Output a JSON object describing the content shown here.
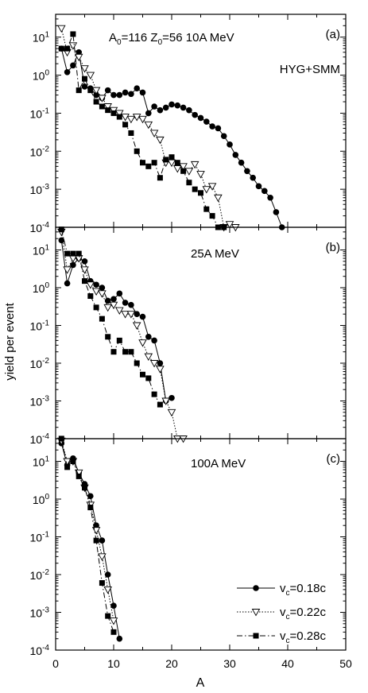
{
  "chart_data": [
    {
      "type": "line",
      "panel_label": "(a)",
      "title_parts": {
        "a0_sym": "A",
        "a0_sub": "0",
        "a0_val": "=116 ",
        "z0_sym": "Z",
        "z0_sub": "0",
        "z0_val": "=56  10A MeV"
      },
      "annotation": "HYG+SMM",
      "xlim": [
        0,
        50
      ],
      "ylim_exp": [
        -4,
        1.6
      ],
      "series": [
        {
          "name": "v_c=0.18c",
          "marker": "circle",
          "dash": "solid",
          "points": [
            [
              1,
              5
            ],
            [
              2,
              1.2
            ],
            [
              3,
              1.8
            ],
            [
              4,
              4
            ],
            [
              5,
              0.5
            ],
            [
              6,
              0.45
            ],
            [
              7,
              0.3
            ],
            [
              8,
              0.25
            ],
            [
              9,
              0.4
            ],
            [
              10,
              0.3
            ],
            [
              11,
              0.3
            ],
            [
              12,
              0.35
            ],
            [
              13,
              0.32
            ],
            [
              14,
              0.45
            ],
            [
              15,
              0.35
            ],
            [
              16,
              0.1
            ],
            [
              17,
              0.15
            ],
            [
              18,
              0.12
            ],
            [
              19,
              0.14
            ],
            [
              20,
              0.17
            ],
            [
              21,
              0.16
            ],
            [
              22,
              0.14
            ],
            [
              23,
              0.12
            ],
            [
              24,
              0.09
            ],
            [
              25,
              0.075
            ],
            [
              26,
              0.06
            ],
            [
              27,
              0.045
            ],
            [
              28,
              0.04
            ],
            [
              29,
              0.025
            ],
            [
              30,
              0.015
            ],
            [
              31,
              0.008
            ],
            [
              32,
              0.005
            ],
            [
              33,
              0.003
            ],
            [
              34,
              0.002
            ],
            [
              35,
              0.0012
            ],
            [
              36,
              0.0009
            ],
            [
              37,
              0.0006
            ],
            [
              38,
              0.00025
            ],
            [
              39,
              0.0001
            ]
          ]
        },
        {
          "name": "v_c=0.22c",
          "marker": "triangle",
          "dash": "dotted",
          "points": [
            [
              1,
              17
            ],
            [
              2,
              4
            ],
            [
              3,
              6
            ],
            [
              4,
              3
            ],
            [
              5,
              1.5
            ],
            [
              6,
              1
            ],
            [
              7,
              0.4
            ],
            [
              8,
              0.25
            ],
            [
              9,
              0.15
            ],
            [
              10,
              0.12
            ],
            [
              11,
              0.1
            ],
            [
              12,
              0.08
            ],
            [
              13,
              0.07
            ],
            [
              14,
              0.08
            ],
            [
              15,
              0.07
            ],
            [
              16,
              0.05
            ],
            [
              17,
              0.03
            ],
            [
              18,
              0.02
            ],
            [
              19,
              0.005
            ],
            [
              20,
              0.005
            ],
            [
              21,
              0.0035
            ],
            [
              22,
              0.004
            ],
            [
              23,
              0.003
            ],
            [
              24,
              0.0045
            ],
            [
              25,
              0.0025
            ],
            [
              26,
              0.001
            ],
            [
              27,
              0.0012
            ],
            [
              28,
              0.0006
            ],
            [
              29,
              0.0001
            ],
            [
              30,
              0.00012
            ],
            [
              31,
              0.0001
            ]
          ]
        },
        {
          "name": "v_c=0.28c",
          "marker": "square",
          "dash": "dashdot",
          "points": [
            [
              1,
              5
            ],
            [
              2,
              5
            ],
            [
              3,
              12
            ],
            [
              4,
              0.4
            ],
            [
              5,
              0.8
            ],
            [
              6,
              0.4
            ],
            [
              7,
              0.2
            ],
            [
              8,
              0.15
            ],
            [
              9,
              0.12
            ],
            [
              10,
              0.1
            ],
            [
              11,
              0.08
            ],
            [
              12,
              0.05
            ],
            [
              13,
              0.03
            ],
            [
              14,
              0.01
            ],
            [
              15,
              0.005
            ],
            [
              16,
              0.004
            ],
            [
              17,
              0.005
            ],
            [
              18,
              0.002
            ],
            [
              19,
              0.006
            ],
            [
              20,
              0.007
            ],
            [
              21,
              0.005
            ],
            [
              22,
              0.003
            ],
            [
              23,
              0.0015
            ],
            [
              24,
              0.001
            ],
            [
              25,
              0.0008
            ],
            [
              26,
              0.0003
            ],
            [
              27,
              0.0002
            ],
            [
              28,
              0.0001
            ],
            [
              29,
              0.0001
            ]
          ]
        }
      ]
    },
    {
      "type": "line",
      "panel_label": "(b)",
      "annotation": "25A MeV",
      "xlim": [
        0,
        50
      ],
      "ylim_exp": [
        -4,
        1.6
      ],
      "series": [
        {
          "name": "v_c=0.18c",
          "marker": "circle",
          "dash": "solid",
          "points": [
            [
              1,
              18
            ],
            [
              2,
              1.3
            ],
            [
              3,
              4
            ],
            [
              4,
              6
            ],
            [
              5,
              5
            ],
            [
              6,
              1.5
            ],
            [
              7,
              1.2
            ],
            [
              8,
              1
            ],
            [
              9,
              0.45
            ],
            [
              10,
              0.5
            ],
            [
              11,
              0.7
            ],
            [
              12,
              0.4
            ],
            [
              13,
              0.35
            ],
            [
              14,
              0.2
            ],
            [
              15,
              0.17
            ],
            [
              16,
              0.05
            ],
            [
              17,
              0.04
            ],
            [
              18,
              0.01
            ],
            [
              19,
              0.001
            ],
            [
              20,
              0.0012
            ]
          ]
        },
        {
          "name": "v_c=0.22c",
          "marker": "triangle",
          "dash": "dotted",
          "points": [
            [
              1,
              30
            ],
            [
              2,
              3
            ],
            [
              3,
              6
            ],
            [
              4,
              6
            ],
            [
              5,
              3
            ],
            [
              6,
              1.2
            ],
            [
              7,
              0.8
            ],
            [
              8,
              0.7
            ],
            [
              9,
              0.3
            ],
            [
              10,
              0.35
            ],
            [
              11,
              0.25
            ],
            [
              12,
              0.2
            ],
            [
              13,
              0.2
            ],
            [
              14,
              0.1
            ],
            [
              15,
              0.035
            ],
            [
              16,
              0.015
            ],
            [
              17,
              0.01
            ],
            [
              18,
              0.007
            ],
            [
              19,
              0.001
            ],
            [
              20,
              0.0005
            ],
            [
              21,
              0.0001
            ],
            [
              22,
              0.0001
            ]
          ]
        },
        {
          "name": "v_c=0.28c",
          "marker": "square",
          "dash": "dashdot",
          "points": [
            [
              1,
              35
            ],
            [
              2,
              8
            ],
            [
              3,
              8
            ],
            [
              4,
              8
            ],
            [
              5,
              1.5
            ],
            [
              6,
              0.6
            ],
            [
              7,
              0.3
            ],
            [
              8,
              0.15
            ],
            [
              9,
              0.05
            ],
            [
              10,
              0.02
            ],
            [
              11,
              0.04
            ],
            [
              12,
              0.02
            ],
            [
              13,
              0.02
            ],
            [
              14,
              0.01
            ],
            [
              15,
              0.005
            ],
            [
              16,
              0.004
            ],
            [
              17,
              0.0015
            ],
            [
              18,
              0.0008
            ]
          ]
        }
      ]
    },
    {
      "type": "line",
      "panel_label": "(c)",
      "annotation": "100A MeV",
      "xlim": [
        0,
        50
      ],
      "ylim_exp": [
        -4,
        1.6
      ],
      "series": [
        {
          "name": "v_c=0.18c",
          "marker": "circle",
          "dash": "solid",
          "points": [
            [
              1,
              30
            ],
            [
              2,
              8
            ],
            [
              3,
              12
            ],
            [
              4,
              5
            ],
            [
              5,
              2.5
            ],
            [
              6,
              1.2
            ],
            [
              7,
              0.2
            ],
            [
              8,
              0.08
            ],
            [
              9,
              0.01
            ],
            [
              10,
              0.0015
            ],
            [
              11,
              0.0002
            ]
          ]
        },
        {
          "name": "v_c=0.22c",
          "marker": "triangle",
          "dash": "dotted",
          "points": [
            [
              1,
              35
            ],
            [
              2,
              10
            ],
            [
              3,
              10
            ],
            [
              4,
              5
            ],
            [
              5,
              2
            ],
            [
              6,
              0.7
            ],
            [
              7,
              0.15
            ],
            [
              8,
              0.03
            ],
            [
              9,
              0.004
            ],
            [
              10,
              0.0006
            ]
          ]
        },
        {
          "name": "v_c=0.28c",
          "marker": "square",
          "dash": "dashdot",
          "points": [
            [
              1,
              40
            ],
            [
              2,
              7
            ],
            [
              3,
              10
            ],
            [
              4,
              4
            ],
            [
              5,
              2
            ],
            [
              6,
              0.6
            ],
            [
              7,
              0.08
            ],
            [
              8,
              0.006
            ],
            [
              9,
              0.0008
            ],
            [
              10,
              0.0003
            ]
          ]
        }
      ]
    }
  ],
  "axes": {
    "xlabel": "A",
    "ylabel": "yield per event",
    "x_ticks": [
      "0",
      "10",
      "20",
      "30",
      "40",
      "50"
    ],
    "y_tick_base": "10",
    "y_tick_exps": [
      "-4",
      "-3",
      "-2",
      "-1",
      "0",
      "1"
    ]
  },
  "legend": {
    "position": "bottom-right of panel (c)",
    "entries": [
      {
        "sym": "v",
        "sub": "c",
        "val": "=0.18c"
      },
      {
        "sym": "v",
        "sub": "c",
        "val": "=0.22c"
      },
      {
        "sym": "v",
        "sub": "c",
        "val": "=0.28c"
      }
    ]
  }
}
